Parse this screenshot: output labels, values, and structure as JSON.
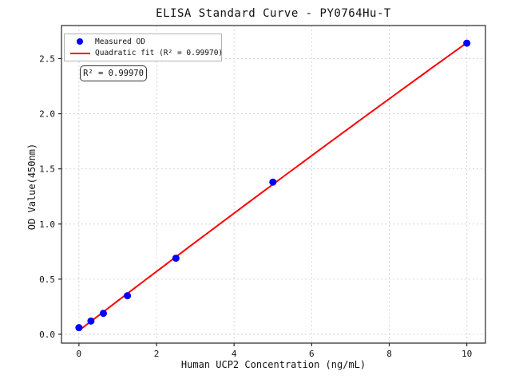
{
  "chart_data": {
    "type": "scatter",
    "title": "ELISA Standard Curve - PY0764Hu-T",
    "xlabel": "Human UCP2 Concentration (ng/mL)",
    "ylabel": "OD Value(450nm)",
    "x": [
      0,
      0.31,
      0.63,
      1.25,
      2.5,
      5,
      10
    ],
    "y": [
      0.06,
      0.12,
      0.19,
      0.35,
      0.69,
      1.38,
      2.64
    ],
    "series": [
      {
        "name": "Measured OD",
        "type": "scatter",
        "color": "#0000ff"
      },
      {
        "name": "Quadratic fit (R² = 0.99970)",
        "type": "line",
        "fit": "quadratic",
        "color": "#ff0000"
      }
    ],
    "annotation": {
      "text": "R² = 0.99970"
    },
    "xlim": [
      -0.45,
      10.48
    ],
    "ylim": [
      -0.08,
      2.8
    ],
    "x_ticks": {
      "values": [
        0,
        2,
        4,
        6,
        8,
        10
      ],
      "labels": [
        "0",
        "2",
        "4",
        "6",
        "8",
        "10"
      ]
    },
    "y_ticks": {
      "values": [
        0,
        0.5,
        1.0,
        1.5,
        2.0,
        2.5
      ],
      "labels": [
        "0.0",
        "0.5",
        "1.0",
        "1.5",
        "2.0",
        "2.5"
      ]
    },
    "grid": true,
    "grid_style": "dashed",
    "legend_position": "upper left",
    "colors": {
      "grid": "#d6d6d6",
      "spine": "#262626",
      "text": "#111111",
      "legend_border": "#b3b3b3"
    }
  }
}
